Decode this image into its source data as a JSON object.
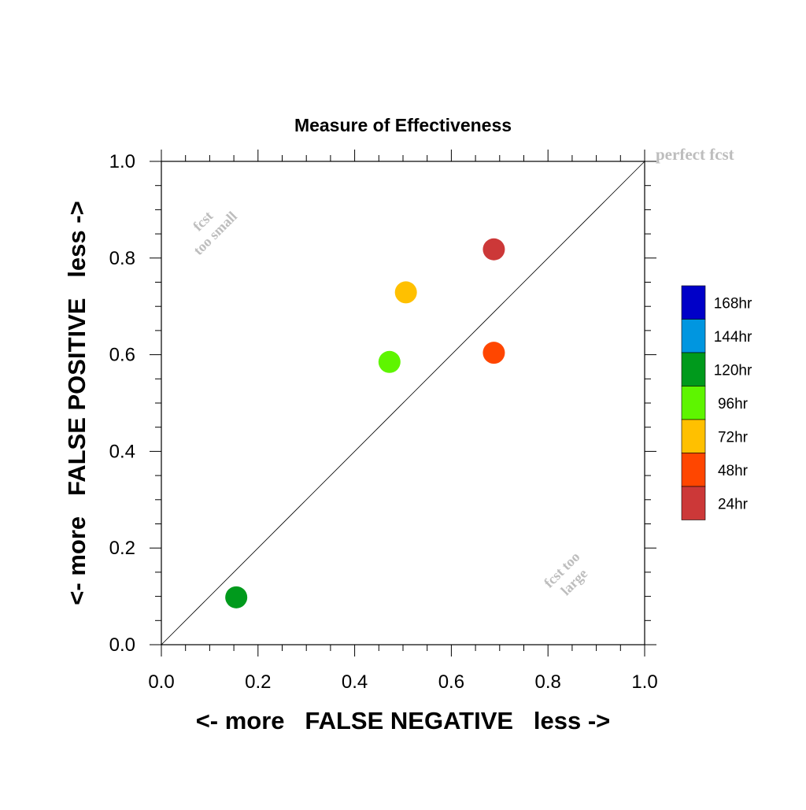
{
  "chart_data": {
    "type": "scatter",
    "title": "Measure of Effectiveness",
    "xlabel": "<- more   FALSE NEGATIVE   less ->",
    "ylabel": "<- more   FALSE POSITIVE   less ->",
    "xlim": [
      0.0,
      1.0
    ],
    "ylim": [
      0.0,
      1.0
    ],
    "xticks": [
      "0.0",
      "0.2",
      "0.4",
      "0.6",
      "0.8",
      "1.0"
    ],
    "yticks": [
      "0.0",
      "0.2",
      "0.4",
      "0.6",
      "0.8",
      "1.0"
    ],
    "grid": false,
    "diagonal_line": true,
    "annotations": {
      "perfect": "perfect fcst",
      "too_small": [
        "fcst",
        "too small"
      ],
      "too_large": [
        "fcst too",
        "large"
      ]
    },
    "legend": {
      "placement": "right",
      "entries": [
        {
          "label": "168hr",
          "color": "#0000c8"
        },
        {
          "label": "144hr",
          "color": "#0096e0"
        },
        {
          "label": "120hr",
          "color": "#009a1c"
        },
        {
          "label": "96hr",
          "color": "#5ef500"
        },
        {
          "label": "72hr",
          "color": "#ffc000"
        },
        {
          "label": "48hr",
          "color": "#ff4600"
        },
        {
          "label": "24hr",
          "color": "#cc3838"
        }
      ]
    },
    "points": [
      {
        "lead": "120hr",
        "x": 0.155,
        "y": 0.098,
        "color": "#009a1c"
      },
      {
        "lead": "96hr",
        "x": 0.472,
        "y": 0.585,
        "color": "#5ef500"
      },
      {
        "lead": "72hr",
        "x": 0.506,
        "y": 0.729,
        "color": "#ffc000"
      },
      {
        "lead": "48hr",
        "x": 0.688,
        "y": 0.604,
        "color": "#ff4600"
      },
      {
        "lead": "24hr",
        "x": 0.688,
        "y": 0.818,
        "color": "#cc3838"
      }
    ]
  }
}
